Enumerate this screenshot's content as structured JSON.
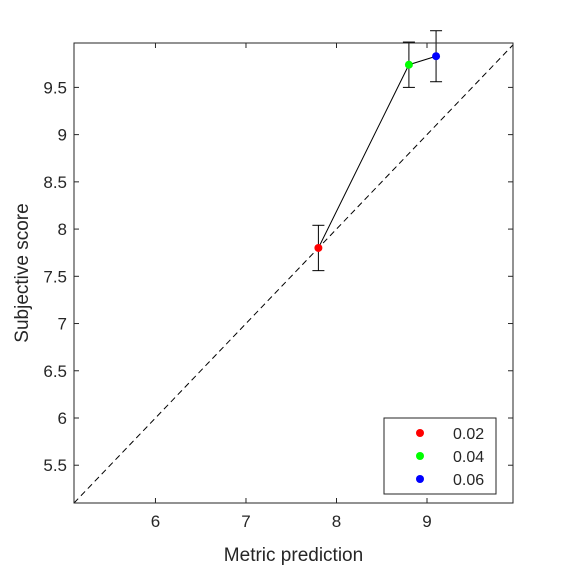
{
  "chart_data": {
    "type": "scatter",
    "xlabel": "Metric prediction",
    "ylabel": "Subjective score",
    "xlim": [
      5.1,
      9.95
    ],
    "ylim": [
      5.1,
      9.97
    ],
    "xticks": [
      6,
      7,
      8,
      9
    ],
    "xtick_labels": [
      "6",
      "7",
      "8",
      "9"
    ],
    "yticks": [
      5.5,
      6,
      6.5,
      7,
      7.5,
      8,
      8.5,
      9,
      9.5
    ],
    "ytick_labels": [
      "5.5",
      "6",
      "6.5",
      "7",
      "7.5",
      "8",
      "8.5",
      "9",
      "9.5"
    ],
    "grid": false,
    "reference_line": {
      "style": "dashed",
      "color": "#000000",
      "from": [
        5.1,
        5.1
      ],
      "to": [
        9.95,
        9.95
      ]
    },
    "connecting_line": true,
    "series": [
      {
        "name": "0.02",
        "color": "#ff0000",
        "x": 7.8,
        "y": 7.8,
        "err_low": 7.56,
        "err_high": 8.04
      },
      {
        "name": "0.04",
        "color": "#00ff00",
        "x": 8.8,
        "y": 9.74,
        "err_low": 9.5,
        "err_high": 9.98
      },
      {
        "name": "0.06",
        "color": "#0000ff",
        "x": 9.1,
        "y": 9.83,
        "err_low": 9.56,
        "err_high": 10.1
      }
    ],
    "legend": {
      "placement": "bottom-right",
      "entries": [
        "0.02",
        "0.04",
        "0.06"
      ]
    }
  }
}
